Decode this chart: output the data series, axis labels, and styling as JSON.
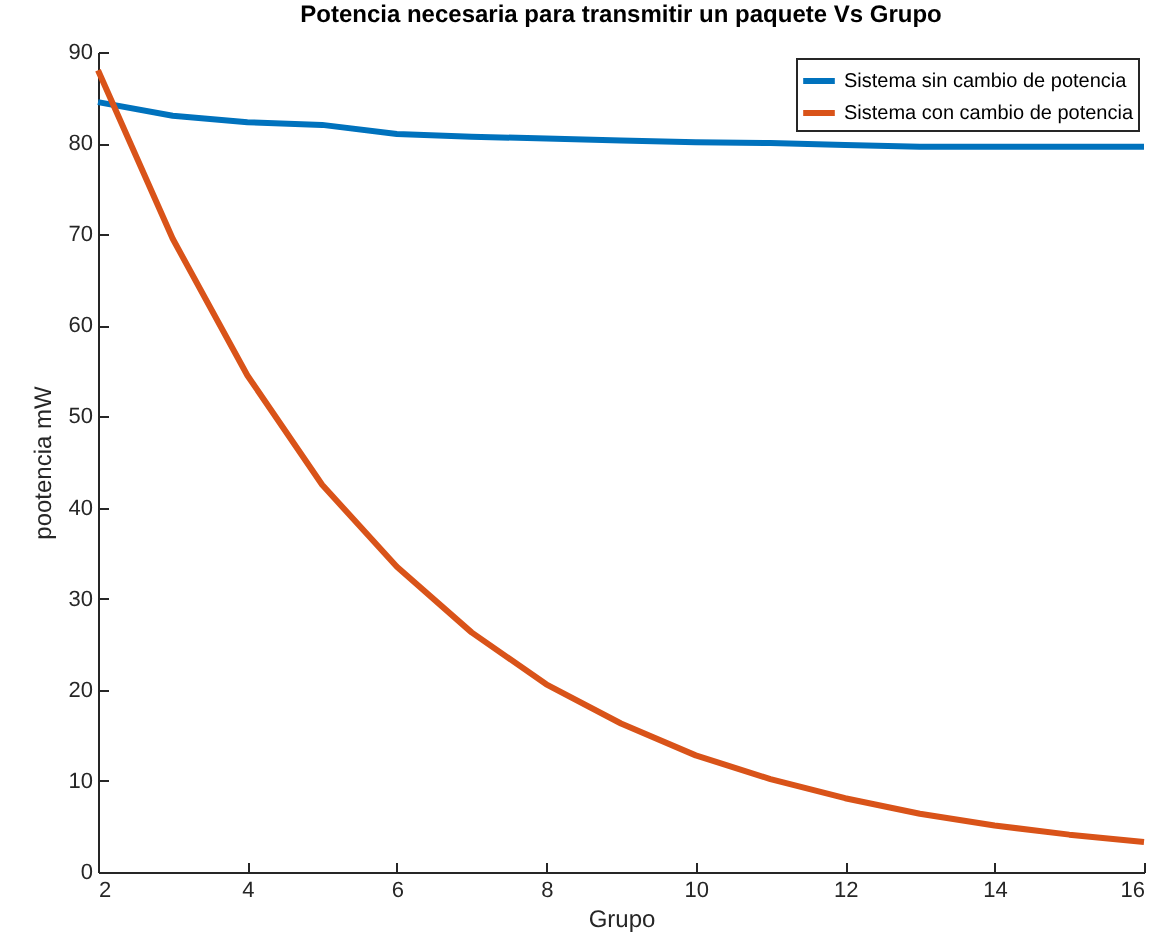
{
  "chart_data": {
    "type": "line",
    "title": "Potencia necesaria para transmitir un paquete Vs Grupo",
    "xlabel": "Grupo",
    "ylabel": "pootencia mW",
    "x": [
      2,
      3,
      4,
      5,
      6,
      7,
      8,
      9,
      10,
      11,
      12,
      13,
      14,
      15,
      16
    ],
    "series": [
      {
        "name": "Sistema sin cambio de potencia",
        "color": "#0072bd",
        "values": [
          84.5,
          83,
          82.3,
          82,
          81,
          80.7,
          80.5,
          80.3,
          80.1,
          80,
          79.8,
          79.6,
          79.6,
          79.6,
          79.6
        ]
      },
      {
        "name": "Sistema con cambio de potencia",
        "color": "#d95319",
        "values": [
          88,
          69.5,
          54.5,
          42.5,
          33.5,
          26.3,
          20.6,
          16.3,
          12.8,
          10.2,
          8.1,
          6.4,
          5.1,
          4.1,
          3.3
        ]
      }
    ],
    "xlim": [
      2,
      16
    ],
    "xticks": [
      2,
      4,
      6,
      8,
      10,
      12,
      14,
      16
    ],
    "ylim": [
      0,
      90
    ],
    "yticks": [
      0,
      10,
      20,
      30,
      40,
      50,
      60,
      70,
      80,
      90
    ],
    "legend": "top right",
    "grid": false
  }
}
